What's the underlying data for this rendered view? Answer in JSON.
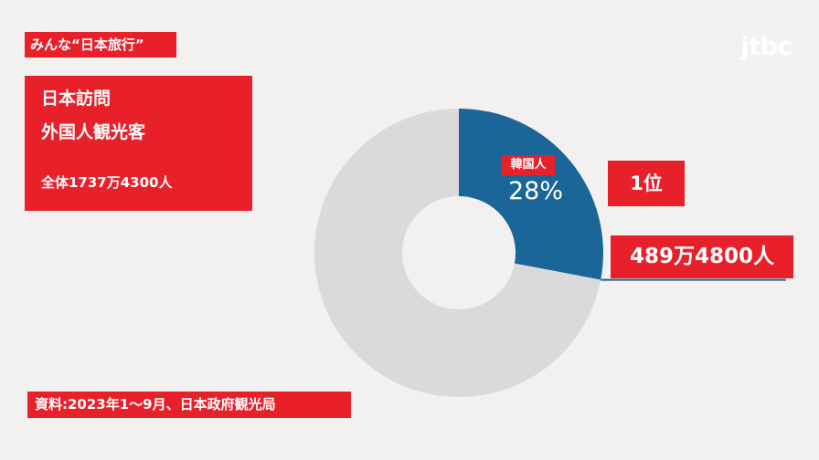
{
  "chart_data": {
    "type": "pie",
    "header_tag": "みんな“日本旅行”",
    "title": "日本訪問",
    "subtitle": "外国人観光客",
    "total": "全体1737万4300人",
    "categories": [
      "韓国人",
      null
    ],
    "values": [
      28,
      72
    ],
    "value_labels": [
      "28%",
      null
    ],
    "colors": [
      "#1b6699",
      "#dadadc"
    ],
    "rank": "1位",
    "count": "489万4800人",
    "source": "資料:2023年1～9月、日本政府観光局",
    "logo": "jtbc"
  }
}
